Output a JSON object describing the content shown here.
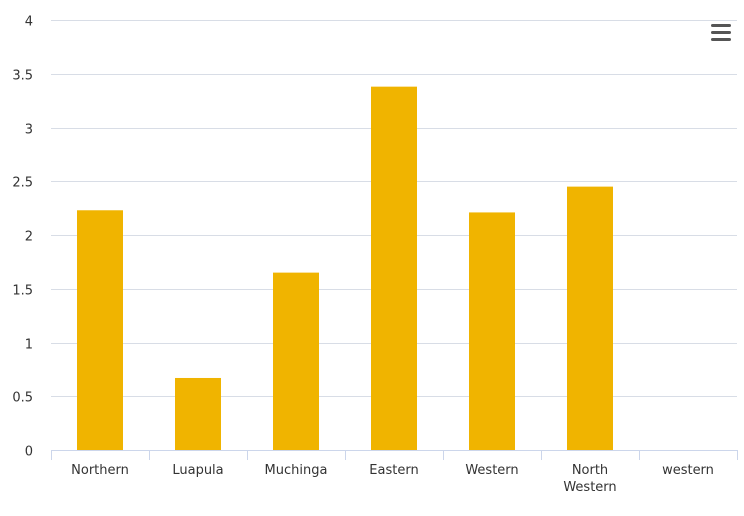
{
  "chart_data": {
    "type": "bar",
    "categories": [
      "Northern",
      "Luapula",
      "Muchinga",
      "Eastern",
      "Western",
      "North Western",
      "western"
    ],
    "category_lines": [
      [
        "Northern"
      ],
      [
        "Luapula"
      ],
      [
        "Muchinga"
      ],
      [
        "Eastern"
      ],
      [
        "Western"
      ],
      [
        "North",
        "Western"
      ],
      [
        "western"
      ]
    ],
    "values": [
      2.23,
      0.67,
      1.65,
      3.38,
      2.21,
      2.45,
      0
    ],
    "ylim": [
      0,
      4
    ],
    "yticks": [
      "0",
      "0.5",
      "1",
      "1.5",
      "2",
      "2.5",
      "3",
      "3.5",
      "4"
    ],
    "title": "",
    "xlabel": "",
    "ylabel": "",
    "grid": true,
    "bar_color": "#f0b400",
    "grid_color": "#d8dde6",
    "axis_color": "#ccd6eb"
  },
  "menu": {
    "icon": "hamburger-menu-icon"
  }
}
